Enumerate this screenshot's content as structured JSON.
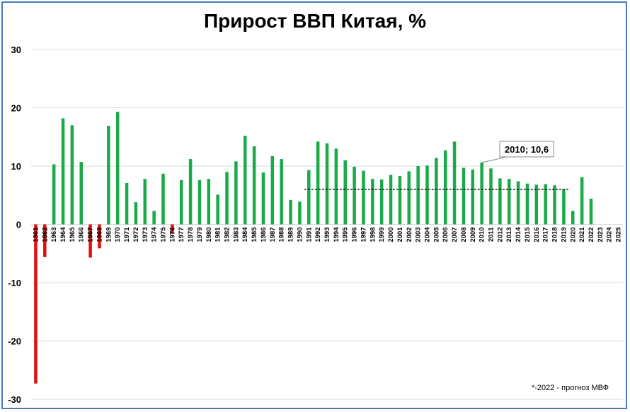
{
  "chart_data": {
    "type": "bar",
    "title": "Прирост ВВП Китая, %",
    "ylim": [
      -30,
      30
    ],
    "yticks": [
      30,
      20,
      10,
      0,
      -10,
      -20,
      -30
    ],
    "grid": true,
    "categories": [
      "1961",
      "1962",
      "1963",
      "1964",
      "1965",
      "1966",
      "1967",
      "1968",
      "1969",
      "1970",
      "1971",
      "1972",
      "1973",
      "1974",
      "1975",
      "1976",
      "1977",
      "1978",
      "1979",
      "1980",
      "1981",
      "1982",
      "1983",
      "1984",
      "1985",
      "1986",
      "1987",
      "1988",
      "1989",
      "1990",
      "1991",
      "1992",
      "1993",
      "1994",
      "1995",
      "1996",
      "1997",
      "1998",
      "1999",
      "2000",
      "2001",
      "2002",
      "2003",
      "2004",
      "2005",
      "2006",
      "2007",
      "2008",
      "2009",
      "2010",
      "2011",
      "2012",
      "2013",
      "2014",
      "2015",
      "2016",
      "2017",
      "2018",
      "2019",
      "2020",
      "2021",
      "2022",
      "2023",
      "2024",
      "2025"
    ],
    "values": [
      -27.3,
      -5.6,
      10.3,
      18.2,
      17.0,
      10.7,
      -5.7,
      -4.1,
      16.9,
      19.3,
      7.1,
      3.8,
      7.8,
      2.3,
      8.7,
      -1.6,
      7.6,
      11.2,
      7.6,
      7.8,
      5.1,
      9.0,
      10.8,
      15.2,
      13.4,
      8.9,
      11.7,
      11.2,
      4.2,
      3.9,
      9.3,
      14.2,
      13.9,
      13.0,
      11.0,
      9.9,
      9.2,
      7.8,
      7.7,
      8.5,
      8.3,
      9.1,
      10.0,
      10.1,
      11.4,
      12.7,
      14.2,
      9.7,
      9.4,
      10.6,
      9.6,
      7.9,
      7.8,
      7.4,
      7.0,
      6.8,
      6.9,
      6.7,
      6.0,
      2.3,
      8.1,
      4.4,
      null,
      null,
      null
    ],
    "positive_color": "#1aaa4a",
    "negative_color": "#e01010",
    "reference_line": {
      "from": "1991",
      "to": "2019",
      "value": 6.0
    },
    "annotation": {
      "category": "2010",
      "text": "2010;   10,6"
    },
    "footnote": "*-2022 - прогноз МВФ"
  }
}
